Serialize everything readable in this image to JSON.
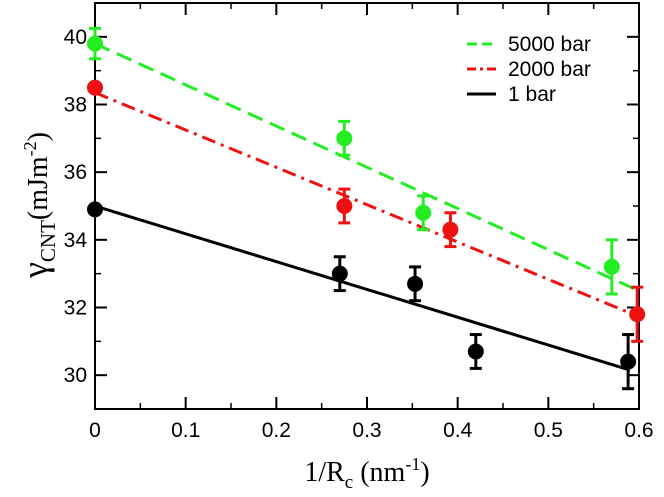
{
  "chart_data": {
    "type": "scatter",
    "title": "",
    "xlabel": {
      "main": "1/R",
      "sub": "c",
      "unit_pre": " (nm",
      "unit_sup": "-1",
      "unit_post": ")"
    },
    "ylabel": {
      "main": "γ",
      "sub": "CNT",
      "unit_pre": "(mJm",
      "unit_sup": "-2",
      "unit_post": ")"
    },
    "xlim": [
      0,
      0.6
    ],
    "ylim": [
      29,
      41
    ],
    "xticks": [
      0,
      0.1,
      0.2,
      0.3,
      0.4,
      0.5,
      0.6
    ],
    "xtick_labels": [
      "0",
      "0.1",
      "0.2",
      "0.3",
      "0.4",
      "0.5",
      "0.6"
    ],
    "yticks": [
      30,
      32,
      34,
      36,
      38,
      40
    ],
    "ytick_labels": [
      "30",
      "32",
      "34",
      "36",
      "38",
      "40"
    ],
    "legend_position": "top-right",
    "series": [
      {
        "name": "5000 bar",
        "color": "#22ee22",
        "line_style": "dashed",
        "points": [
          {
            "x": 0.0,
            "y": 39.8,
            "err": 0.45
          },
          {
            "x": 0.275,
            "y": 37.0,
            "err": 0.5
          },
          {
            "x": 0.362,
            "y": 34.8,
            "err": 0.5
          },
          {
            "x": 0.57,
            "y": 33.2,
            "err": 0.8
          }
        ],
        "fit": {
          "x": [
            0.0,
            0.595
          ],
          "y": [
            39.8,
            32.55
          ]
        }
      },
      {
        "name": "2000 bar",
        "color": "#ee1111",
        "line_style": "dashdot",
        "points": [
          {
            "x": 0.0,
            "y": 38.5,
            "err": 0.0
          },
          {
            "x": 0.275,
            "y": 35.0,
            "err": 0.5
          },
          {
            "x": 0.392,
            "y": 34.3,
            "err": 0.5
          },
          {
            "x": 0.598,
            "y": 31.8,
            "err": 0.8
          }
        ],
        "fit": {
          "x": [
            0.0,
            0.598
          ],
          "y": [
            38.35,
            31.75
          ]
        }
      },
      {
        "name": "1 bar",
        "color": "#000000",
        "line_style": "solid",
        "points": [
          {
            "x": 0.0,
            "y": 34.9,
            "err": 0.0
          },
          {
            "x": 0.27,
            "y": 33.0,
            "err": 0.5
          },
          {
            "x": 0.353,
            "y": 32.7,
            "err": 0.5
          },
          {
            "x": 0.42,
            "y": 30.7,
            "err": 0.5
          },
          {
            "x": 0.588,
            "y": 30.4,
            "err": 0.8
          }
        ],
        "fit": {
          "x": [
            0.0,
            0.59
          ],
          "y": [
            35.0,
            30.15
          ]
        }
      }
    ]
  }
}
